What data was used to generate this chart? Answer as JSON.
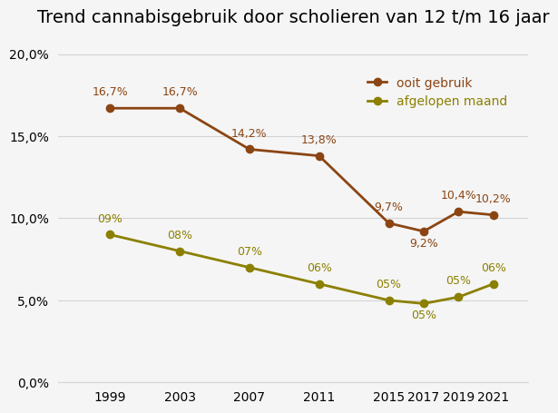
{
  "title": "Trend cannabisgebruik door scholieren van 12 t/m 16 jaar",
  "years": [
    1999,
    2003,
    2007,
    2011,
    2015,
    2017,
    2019,
    2021
  ],
  "ooit_gebruik": [
    16.7,
    16.7,
    14.2,
    13.8,
    9.7,
    9.2,
    10.4,
    10.2
  ],
  "afgelopen_maand": [
    9.0,
    8.0,
    7.0,
    6.0,
    5.0,
    4.8,
    5.2,
    6.0
  ],
  "ooit_labels": [
    "16,7%",
    "16,7%",
    "14,2%",
    "13,8%",
    "9,7%",
    "9,2%",
    "10,4%",
    "10,2%"
  ],
  "maand_labels": [
    "09%",
    "08%",
    "07%",
    "06%",
    "05%",
    "05%",
    "05%",
    "06%"
  ],
  "ooit_color": "#8B4513",
  "maand_color": "#8B8000",
  "legend_ooit": "ooit gebruik",
  "legend_maand": "afgelopen maand",
  "ylim": [
    0,
    21
  ],
  "yticks": [
    0.0,
    5.0,
    10.0,
    15.0,
    20.0
  ],
  "background_color": "#f5f5f5",
  "title_fontsize": 14,
  "label_fontsize": 9,
  "tick_fontsize": 10
}
